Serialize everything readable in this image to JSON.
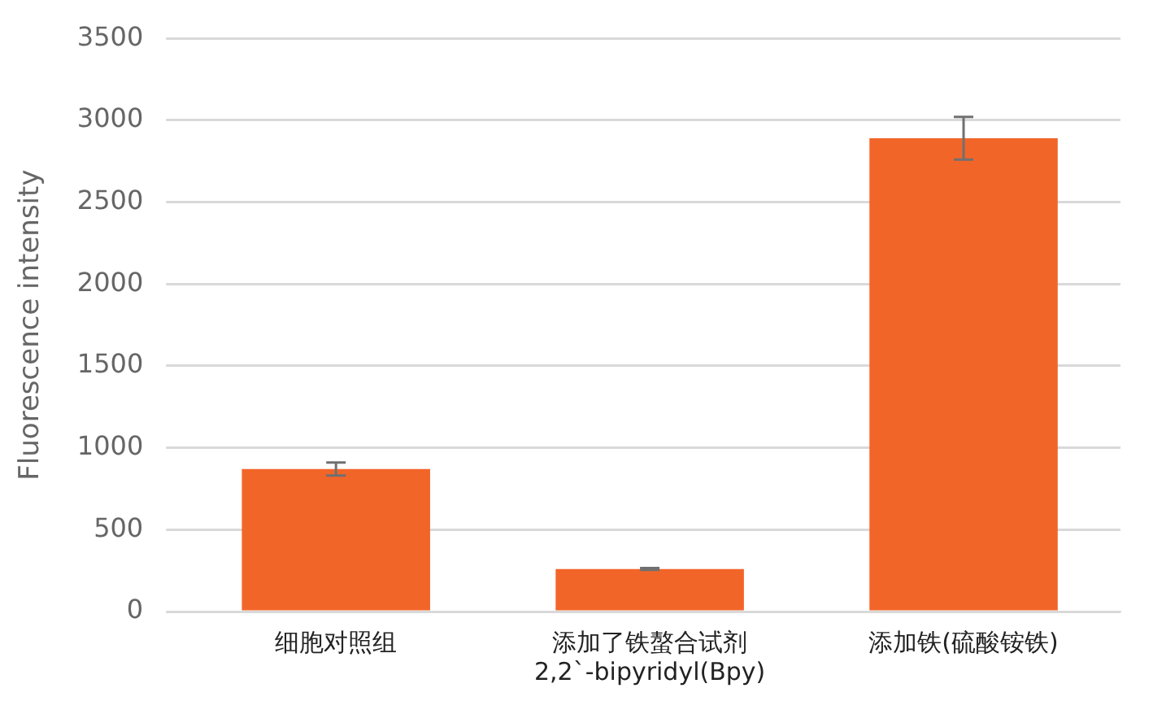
{
  "chart_data": {
    "type": "bar",
    "ylabel": "Fluorescence intensity",
    "categories": [
      "细胞对照组",
      "添加了铁螯合试剂\n2,2`-bipyridyl(Bpy)",
      "添加铁(硫酸铵铁)"
    ],
    "values": [
      870,
      260,
      2890
    ],
    "errors": [
      40,
      6,
      130
    ],
    "color": "#f26529",
    "ylim": [
      0,
      3500
    ],
    "yticks": [
      0,
      500,
      1000,
      1500,
      2000,
      2500,
      3000,
      3500
    ],
    "grid": "y"
  }
}
